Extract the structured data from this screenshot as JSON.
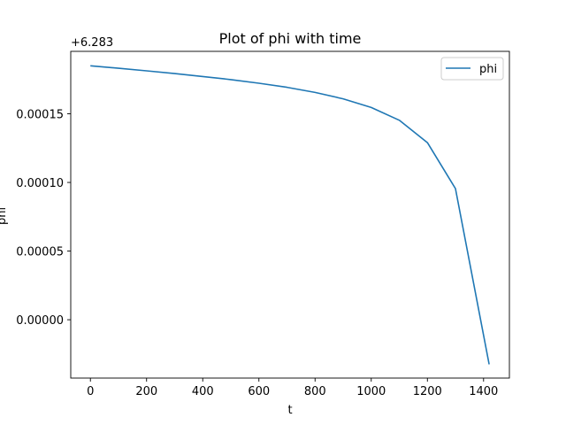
{
  "chart_data": {
    "type": "line",
    "title": "Plot of phi with time",
    "xlabel": "t",
    "ylabel": "phi",
    "y_offset_label": "+6.283",
    "xlim": [
      -70,
      1492
    ],
    "ylim": [
      -4.25e-05,
      0.0001955
    ],
    "xticks": [
      0,
      200,
      400,
      600,
      800,
      1000,
      1200,
      1400
    ],
    "xtick_labels": [
      "0",
      "200",
      "400",
      "600",
      "800",
      "1000",
      "1200",
      "1400"
    ],
    "yticks": [
      0.0,
      5e-05,
      0.0001,
      0.00015
    ],
    "ytick_labels": [
      "0.00000",
      "0.00005",
      "0.00010",
      "0.00015"
    ],
    "legend_position": "top-right",
    "color": "#1f77b4",
    "series": [
      {
        "name": "phi",
        "x": [
          0,
          100,
          200,
          300,
          400,
          500,
          600,
          700,
          800,
          900,
          1000,
          1100,
          1200,
          1300,
          1420
        ],
        "y": [
          0.000185,
          0.0001832,
          0.0001813,
          0.0001793,
          0.0001772,
          0.0001749,
          0.0001723,
          0.0001693,
          0.0001656,
          0.0001609,
          0.0001546,
          0.0001453,
          0.000129,
          9.55e-05,
          -3.25e-05
        ]
      }
    ]
  }
}
